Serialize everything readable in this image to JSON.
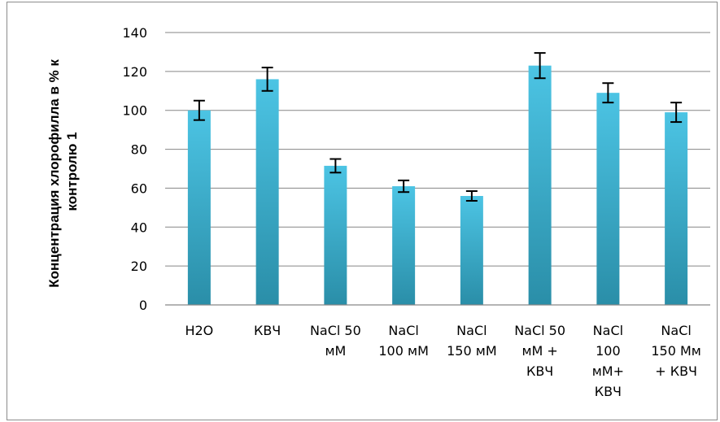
{
  "chart_data": {
    "type": "bar",
    "title": "",
    "xlabel": "",
    "ylabel_lines": [
      "Концентрация хлорофилла в % к",
      "контролю 1"
    ],
    "ylim": [
      0,
      140
    ],
    "y_ticks": [
      0,
      20,
      40,
      60,
      80,
      100,
      120,
      140
    ],
    "grid": true,
    "legend": "none",
    "categories": [
      [
        "H2O"
      ],
      [
        "КВЧ"
      ],
      [
        "NaCl 50",
        "мМ"
      ],
      [
        "NaCl",
        "100 мМ"
      ],
      [
        "NaCl",
        "150 мМ"
      ],
      [
        "NaCl 50",
        "мМ +",
        "КВЧ"
      ],
      [
        "NaCl",
        "100",
        "мМ+",
        "КВЧ"
      ],
      [
        "NaCl",
        "150 Мм",
        "+ КВЧ"
      ]
    ],
    "series": [
      {
        "values": [
          100,
          116,
          71.5,
          61,
          56,
          123,
          109,
          99
        ],
        "errors": [
          5,
          6,
          3.5,
          3,
          2.5,
          6.5,
          5,
          5
        ]
      }
    ],
    "colors": {
      "bar_top": "#4cc4e4",
      "bar_bottom": "#2a8ea8",
      "grid": "#868686",
      "axis": "#868686",
      "error_bar": "#000000"
    }
  }
}
